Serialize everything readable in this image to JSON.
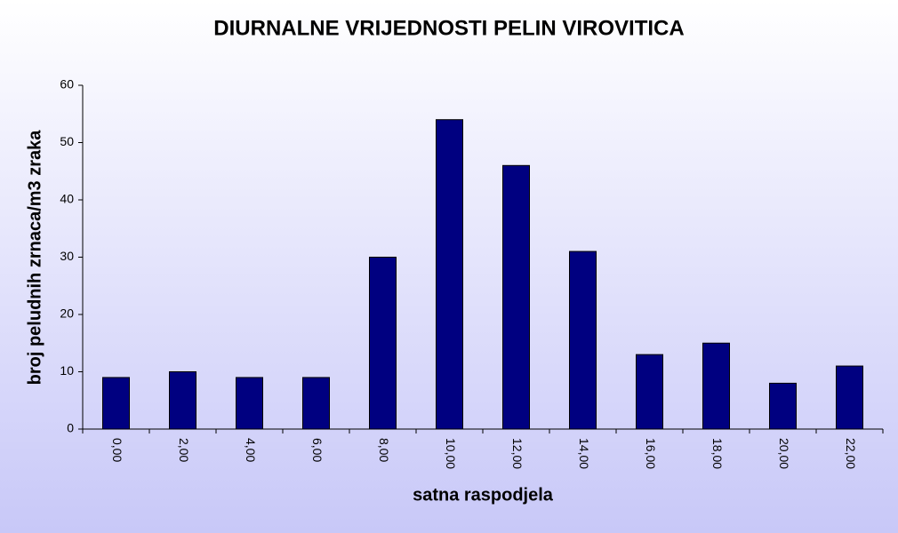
{
  "chart_data": {
    "type": "bar",
    "title": "DIURNALNE VRIJEDNOSTI PELIN VIROVITICA",
    "x_label": "satna raspodjela",
    "y_label": "broj peludnih zrnaca/m3 zraka",
    "categories": [
      "0,00",
      "2,00",
      "4,00",
      "6,00",
      "8,00",
      "10,00",
      "12,00",
      "14,00",
      "16,00",
      "18,00",
      "20,00",
      "22,00"
    ],
    "values": [
      9,
      10,
      9,
      9,
      30,
      54,
      46,
      31,
      13,
      15,
      8,
      11
    ],
    "color": "#000080",
    "ylim": [
      0,
      60
    ],
    "yticks": [
      0,
      10,
      20,
      30,
      40,
      50,
      60
    ],
    "grid": false
  }
}
